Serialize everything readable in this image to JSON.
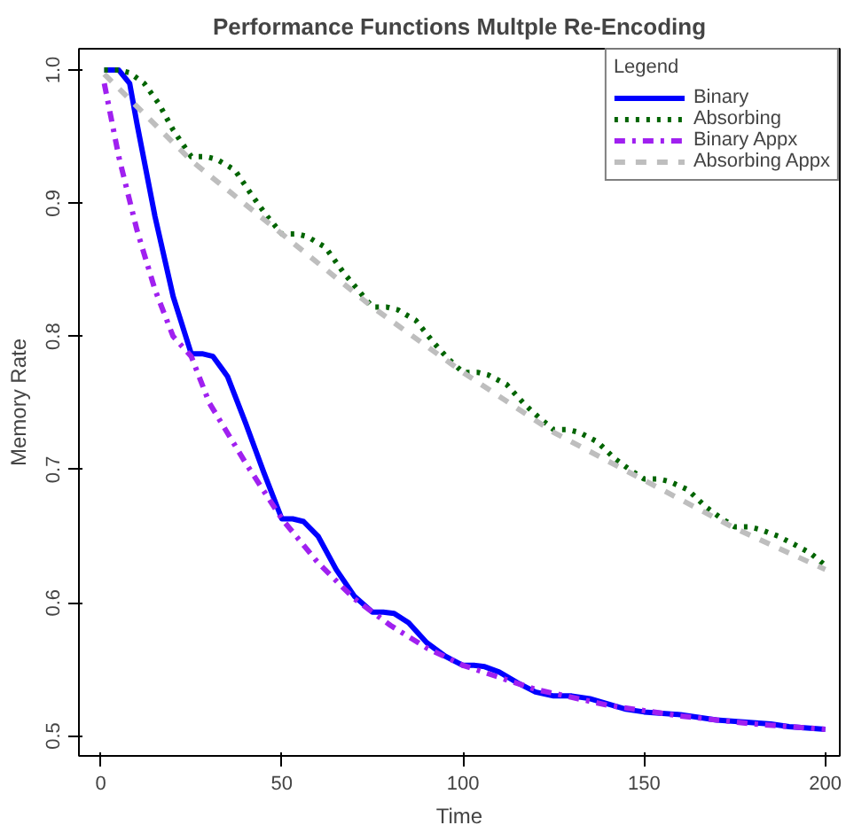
{
  "chart_data": {
    "type": "line",
    "title": "Performance Functions Multple Re-Encoding",
    "xlabel": "Time",
    "ylabel": "Memory Rate",
    "legend_title": "Legend",
    "legend": "top right",
    "grid": false,
    "xlim": [
      -6,
      204
    ],
    "xticks": [
      0,
      50,
      100,
      150,
      200
    ],
    "ylim": [
      0.485,
      1.016
    ],
    "yticks": [
      0.5,
      0.6,
      0.7,
      0.8,
      0.9,
      {
        "value": 1.0,
        "label": "1.0"
      }
    ],
    "series": [
      {
        "name": "Binary",
        "color": "#0000ff",
        "line_style": "solid",
        "x": [
          1,
          5,
          8,
          10,
          15,
          20,
          25,
          28,
          31,
          35,
          40,
          45,
          50,
          53,
          56,
          60,
          65,
          70,
          75,
          78,
          81,
          85,
          90,
          95,
          100,
          103,
          106,
          110,
          115,
          120,
          125,
          130,
          135,
          140,
          145,
          150,
          160,
          170,
          175,
          185,
          190,
          200
        ],
        "values": [
          1.0,
          1.0,
          0.99,
          0.96,
          0.89,
          0.83,
          0.787,
          0.787,
          0.785,
          0.77,
          0.735,
          0.698,
          0.663,
          0.663,
          0.661,
          0.65,
          0.625,
          0.605,
          0.593,
          0.593,
          0.592,
          0.585,
          0.57,
          0.56,
          0.553,
          0.553,
          0.552,
          0.548,
          0.54,
          0.533,
          0.53,
          0.53,
          0.528,
          0.524,
          0.52,
          0.518,
          0.516,
          0.512,
          0.511,
          0.509,
          0.507,
          0.505
        ]
      },
      {
        "name": "Absorbing",
        "color": "#006400",
        "line_style": "dotted",
        "x": [
          1,
          5,
          8,
          12,
          16,
          20,
          25,
          29,
          32,
          37,
          42,
          46,
          50,
          54,
          57,
          62,
          67,
          71,
          75,
          79,
          82,
          87,
          92,
          96,
          100,
          104,
          107,
          112,
          117,
          121,
          125,
          129,
          132,
          137,
          142,
          146,
          150,
          154,
          157,
          162,
          167,
          171,
          175,
          179,
          182,
          187,
          192,
          196,
          200
        ],
        "values": [
          1.0,
          1.0,
          0.998,
          0.99,
          0.975,
          0.955,
          0.935,
          0.935,
          0.933,
          0.925,
          0.905,
          0.89,
          0.877,
          0.877,
          0.875,
          0.867,
          0.848,
          0.835,
          0.822,
          0.822,
          0.82,
          0.812,
          0.795,
          0.783,
          0.773,
          0.773,
          0.771,
          0.764,
          0.749,
          0.739,
          0.73,
          0.73,
          0.728,
          0.721,
          0.708,
          0.7,
          0.693,
          0.693,
          0.691,
          0.685,
          0.672,
          0.664,
          0.657,
          0.657,
          0.655,
          0.65,
          0.643,
          0.637,
          0.628
        ]
      },
      {
        "name": "Binary Appx",
        "color": "#a020f0",
        "line_style": "dashdot",
        "x": [
          1,
          5,
          10,
          15,
          20,
          25,
          30,
          40,
          50,
          60,
          70,
          80,
          90,
          100,
          120,
          140,
          160,
          180,
          200
        ],
        "values": [
          0.99,
          0.935,
          0.88,
          0.835,
          0.8,
          0.785,
          0.75,
          0.705,
          0.663,
          0.63,
          0.603,
          0.583,
          0.566,
          0.553,
          0.535,
          0.523,
          0.515,
          0.509,
          0.505
        ]
      },
      {
        "name": "Absorbing Appx",
        "color": "#bebebe",
        "line_style": "dashed",
        "x": [
          1,
          25,
          50,
          75,
          100,
          125,
          150,
          175,
          200
        ],
        "values": [
          0.997,
          0.932,
          0.877,
          0.822,
          0.773,
          0.728,
          0.692,
          0.656,
          0.625
        ]
      }
    ]
  }
}
